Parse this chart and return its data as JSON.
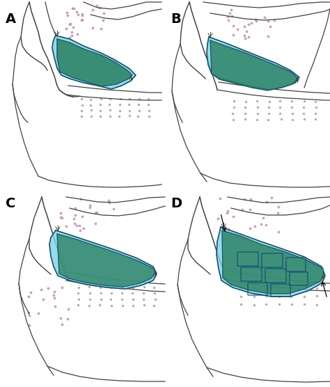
{
  "bg_color": "#ffffff",
  "light_blue": "#7dd4e8",
  "mid_blue": "#55c0d8",
  "dark_blue": "#1a5070",
  "teal_green": "#2a8060",
  "green": "#35a060",
  "skin_light": "#f8f2e8",
  "skin_tan": "#e8d8b0",
  "line_color": "#404040",
  "dot_purple": "#c090b0",
  "dot_gray": "#909898",
  "label_fontsize": 14,
  "panel_labels": [
    "A",
    "B",
    "C",
    "D"
  ]
}
